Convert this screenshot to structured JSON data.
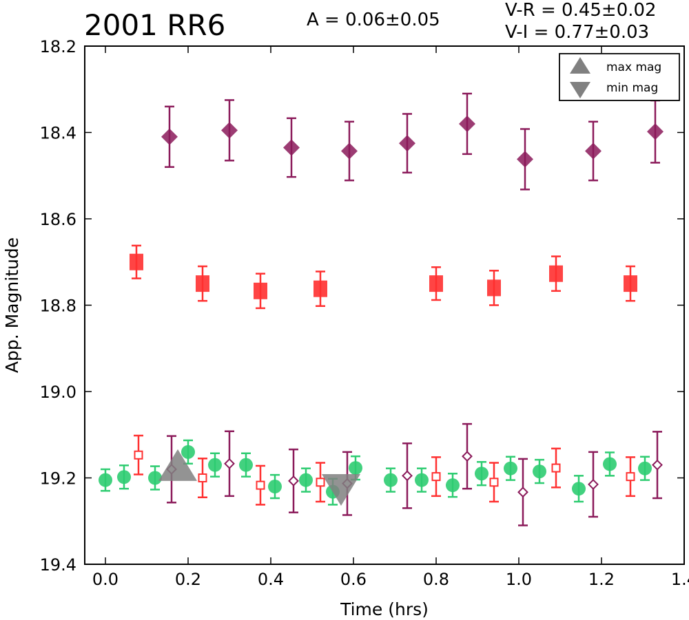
{
  "header": {
    "title": "2001 RR6",
    "amplitude": "A  = 0.06±0.05",
    "vr": "V-R = 0.45±0.02",
    "vi": "V-I  = 0.77±0.03"
  },
  "chart_data": {
    "type": "scatter",
    "title": "2001 RR6",
    "xlabel": "Time (hrs)",
    "ylabel": "App. Magnitude",
    "xlim": [
      -0.05,
      1.4
    ],
    "ylim": [
      19.4,
      18.2
    ],
    "y_inverted": true,
    "xticks": [
      0.0,
      0.2,
      0.4,
      0.6,
      0.8,
      1.0,
      1.2,
      1.4
    ],
    "xtick_labels": [
      "0.0",
      "0.2",
      "0.4",
      "0.6",
      "0.8",
      "1.0",
      "1.2",
      "1.4"
    ],
    "yticks": [
      18.2,
      18.4,
      18.6,
      18.8,
      19.0,
      19.2,
      19.4
    ],
    "ytick_labels": [
      "18.2",
      "18.4",
      "18.6",
      "18.8",
      "19.0",
      "19.2",
      "19.4"
    ],
    "grid": false,
    "legend_position": "top-right",
    "legend": [
      {
        "label": "max mag",
        "marker": "triangle-up",
        "color": "#808080"
      },
      {
        "label": "min mag",
        "marker": "triangle-down",
        "color": "#808080"
      }
    ],
    "colors": {
      "v": "#2ecc71",
      "r": "#ff3030",
      "i": "#8b1a5a",
      "marker_grey": "#808080"
    },
    "series": [
      {
        "marker": "diamond-filled",
        "color": "#8b1a5a",
        "points": [
          {
            "x": 0.155,
            "y": 18.41,
            "err": 0.07
          },
          {
            "x": 0.3,
            "y": 18.395,
            "err": 0.07
          },
          {
            "x": 0.45,
            "y": 18.435,
            "err": 0.068
          },
          {
            "x": 0.59,
            "y": 18.443,
            "err": 0.068
          },
          {
            "x": 0.73,
            "y": 18.425,
            "err": 0.068
          },
          {
            "x": 0.875,
            "y": 18.38,
            "err": 0.07
          },
          {
            "x": 1.015,
            "y": 18.462,
            "err": 0.07
          },
          {
            "x": 1.18,
            "y": 18.443,
            "err": 0.068
          },
          {
            "x": 1.33,
            "y": 18.398,
            "err": 0.072
          }
        ]
      },
      {
        "marker": "square-filled",
        "color": "#ff3030",
        "points": [
          {
            "x": 0.075,
            "y": 18.7,
            "err": 0.038
          },
          {
            "x": 0.235,
            "y": 18.75,
            "err": 0.04
          },
          {
            "x": 0.375,
            "y": 18.767,
            "err": 0.04
          },
          {
            "x": 0.52,
            "y": 18.762,
            "err": 0.04
          },
          {
            "x": 0.8,
            "y": 18.75,
            "err": 0.038
          },
          {
            "x": 0.94,
            "y": 18.76,
            "err": 0.04
          },
          {
            "x": 1.09,
            "y": 18.727,
            "err": 0.04
          },
          {
            "x": 1.27,
            "y": 18.75,
            "err": 0.04
          }
        ]
      },
      {
        "marker": "circle-filled",
        "color": "#2ecc71",
        "points": [
          {
            "x": 0.0,
            "y": 19.205,
            "err": 0.025
          },
          {
            "x": 0.045,
            "y": 19.198,
            "err": 0.027
          },
          {
            "x": 0.12,
            "y": 19.2,
            "err": 0.027
          },
          {
            "x": 0.2,
            "y": 19.14,
            "err": 0.027
          },
          {
            "x": 0.265,
            "y": 19.17,
            "err": 0.027
          },
          {
            "x": 0.34,
            "y": 19.17,
            "err": 0.027
          },
          {
            "x": 0.41,
            "y": 19.22,
            "err": 0.027
          },
          {
            "x": 0.485,
            "y": 19.205,
            "err": 0.027
          },
          {
            "x": 0.55,
            "y": 19.232,
            "err": 0.03
          },
          {
            "x": 0.605,
            "y": 19.177,
            "err": 0.027
          },
          {
            "x": 0.69,
            "y": 19.205,
            "err": 0.027
          },
          {
            "x": 0.765,
            "y": 19.205,
            "err": 0.027
          },
          {
            "x": 0.84,
            "y": 19.217,
            "err": 0.027
          },
          {
            "x": 0.91,
            "y": 19.19,
            "err": 0.027
          },
          {
            "x": 0.98,
            "y": 19.178,
            "err": 0.027
          },
          {
            "x": 1.05,
            "y": 19.185,
            "err": 0.027
          },
          {
            "x": 1.145,
            "y": 19.225,
            "err": 0.03
          },
          {
            "x": 1.22,
            "y": 19.168,
            "err": 0.027
          },
          {
            "x": 1.305,
            "y": 19.178,
            "err": 0.027
          }
        ]
      },
      {
        "marker": "square-open",
        "color": "#ff3030",
        "points": [
          {
            "x": 0.08,
            "y": 19.147,
            "err": 0.045
          },
          {
            "x": 0.235,
            "y": 19.2,
            "err": 0.045
          },
          {
            "x": 0.375,
            "y": 19.217,
            "err": 0.045
          },
          {
            "x": 0.52,
            "y": 19.21,
            "err": 0.045
          },
          {
            "x": 0.8,
            "y": 19.197,
            "err": 0.045
          },
          {
            "x": 0.94,
            "y": 19.21,
            "err": 0.045
          },
          {
            "x": 1.09,
            "y": 19.177,
            "err": 0.045
          },
          {
            "x": 1.27,
            "y": 19.197,
            "err": 0.045
          }
        ]
      },
      {
        "marker": "diamond-open",
        "color": "#8b1a5a",
        "points": [
          {
            "x": 0.16,
            "y": 19.18,
            "err": 0.077
          },
          {
            "x": 0.3,
            "y": 19.167,
            "err": 0.075
          },
          {
            "x": 0.455,
            "y": 19.207,
            "err": 0.073
          },
          {
            "x": 0.585,
            "y": 19.213,
            "err": 0.073
          },
          {
            "x": 0.73,
            "y": 19.195,
            "err": 0.075
          },
          {
            "x": 0.875,
            "y": 19.15,
            "err": 0.075
          },
          {
            "x": 1.01,
            "y": 19.233,
            "err": 0.077
          },
          {
            "x": 1.18,
            "y": 19.215,
            "err": 0.075
          },
          {
            "x": 1.335,
            "y": 19.17,
            "err": 0.077
          }
        ]
      },
      {
        "marker": "triangle-up",
        "color": "#808080",
        "points": [
          {
            "x": 0.175,
            "y": 19.175
          }
        ]
      },
      {
        "marker": "triangle-down",
        "color": "#808080",
        "points": [
          {
            "x": 0.57,
            "y": 19.22
          }
        ]
      }
    ]
  }
}
